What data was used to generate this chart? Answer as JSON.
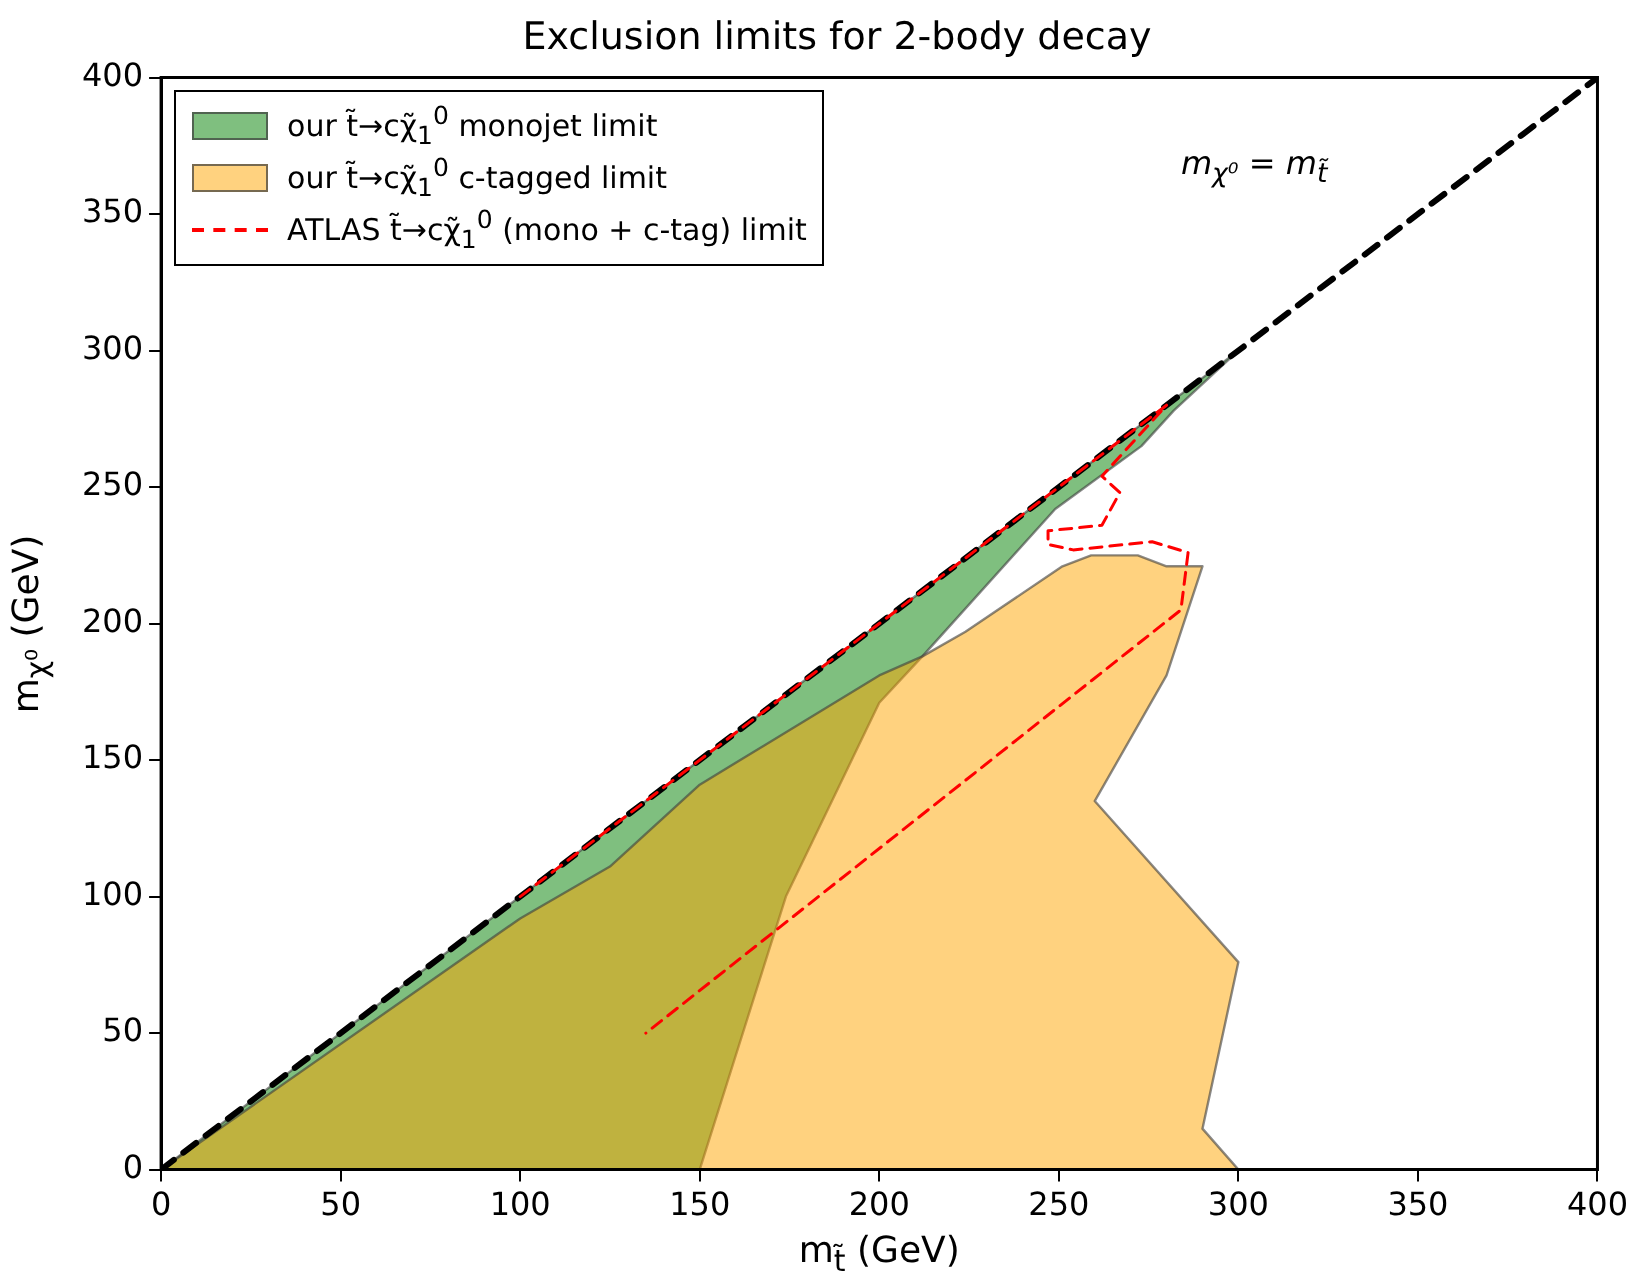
{
  "chart_data": {
    "type": "area",
    "title": "Exclusion limits for 2-body decay",
    "xlabel": "m$_{t̃}$ (GeV)",
    "ylabel": "m$_{χ⁰}$  (GeV)",
    "xlim": [
      0,
      400
    ],
    "ylim": [
      0,
      400
    ],
    "xticks": [
      0,
      50,
      100,
      150,
      200,
      250,
      300,
      350,
      400
    ],
    "yticks": [
      0,
      50,
      100,
      150,
      200,
      250,
      300,
      350,
      400
    ],
    "grid": false,
    "legend": "top left",
    "marker": "none",
    "annotations": [
      "m$_{χ⁰}$ = m$_{t̃}$"
    ],
    "series": [
      {
        "name": "our t̃→cχ̃$_{1}$$^{0}$  monojet limit",
        "color": "#008000",
        "x": [
          0,
          300,
          300,
          282,
          273,
          249,
          212,
          200,
          174,
          150,
          0
        ],
        "values": [
          0,
          300,
          300,
          278,
          265,
          242,
          188,
          171,
          100,
          0,
          0
        ]
      },
      {
        "name": "our t̃→cχ̃$_{1}$$^{0}$  c-tagged limit",
        "color": "#ffa500",
        "x": [
          0,
          100,
          125,
          150,
          200,
          212,
          224,
          251,
          259,
          272,
          280,
          290,
          280,
          260,
          300,
          290,
          300,
          0
        ],
        "values": [
          0,
          92,
          111,
          141,
          181,
          188,
          197,
          221,
          225,
          225,
          221,
          221,
          181,
          135,
          76,
          15,
          0,
          0
        ]
      },
      {
        "name": "ATLAS t̃→cχ̃$_{1}$$^{0}$  (mono + c-tag) limit",
        "type": "line",
        "line_style": "dashed",
        "color": "#ff0000",
        "x": [
          100,
          280,
          262,
          267,
          262,
          247,
          247,
          254,
          276,
          286,
          284,
          135
        ],
        "values": [
          100,
          280,
          254,
          248,
          236,
          234,
          229,
          227,
          230,
          226,
          205,
          50
        ]
      },
      {
        "type": "line",
        "line_style": "dashed",
        "color": "#000000",
        "x": [
          0,
          400
        ],
        "values": [
          0,
          400
        ]
      }
    ]
  }
}
